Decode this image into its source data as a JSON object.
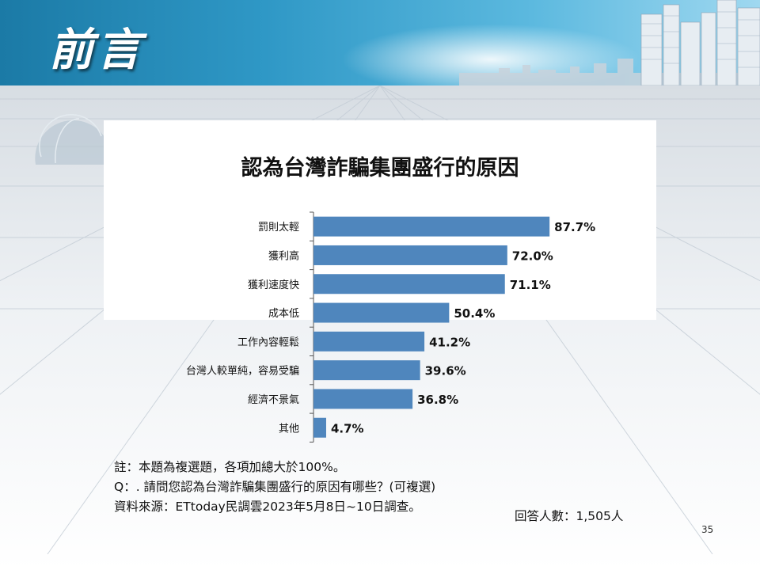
{
  "slide": {
    "title": "前言",
    "page_number": "35"
  },
  "colors": {
    "bar": "#4f86bd",
    "header_start": "#1b7aa6",
    "header_end": "#9fd8f0"
  },
  "chart_data": {
    "type": "bar",
    "orientation": "horizontal",
    "title": "認為台灣詐騙集團盛行的原因",
    "categories": [
      "罰則太輕",
      "獲利高",
      "獲利速度快",
      "成本低",
      "工作內容輕鬆",
      "台灣人較單純，容易受騙",
      "經濟不景氣",
      "其他"
    ],
    "values": [
      87.7,
      72.0,
      71.1,
      50.4,
      41.2,
      39.6,
      36.8,
      4.7
    ],
    "value_labels": [
      "87.7%",
      "72.0%",
      "71.1%",
      "50.4%",
      "41.2%",
      "39.6%",
      "36.8%",
      "4.7%"
    ],
    "xlim": [
      0,
      100
    ],
    "grid": false,
    "legend": "none"
  },
  "notes": {
    "note": "註：本題為複選題，各項加總大於100%。",
    "question": "Q：. 請問您認為台灣詐騙集團盛行的原因有哪些？(可複選)",
    "source": "資料來源：ETtoday民調雲2023年5月8日~10日調查。",
    "respondents": "回答人數：1,505人"
  }
}
